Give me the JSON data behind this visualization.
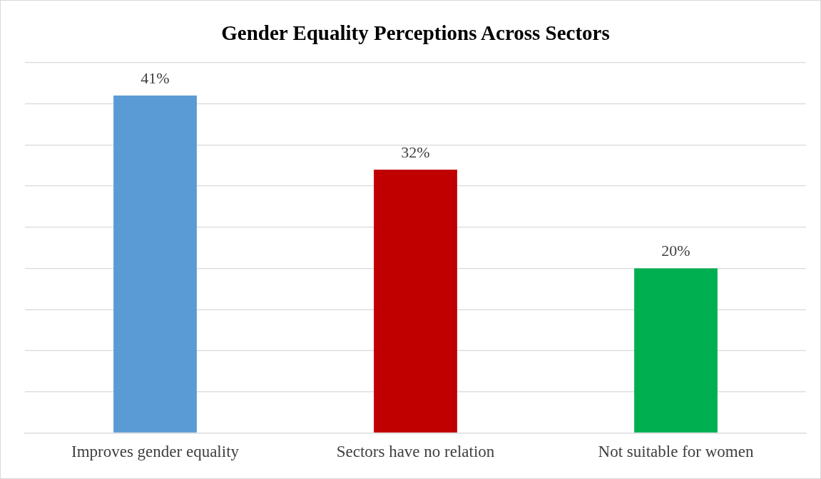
{
  "chart_data": {
    "type": "bar",
    "title": "Gender Equality Perceptions Across Sectors",
    "categories": [
      "Improves gender equality",
      "Sectors have no relation",
      "Not suitable for women"
    ],
    "values": [
      41,
      32,
      20
    ],
    "colors": [
      "#5b9bd5",
      "#c00000",
      "#00b050"
    ],
    "value_labels": [
      "41%",
      "32%",
      "20%"
    ],
    "ylim": [
      0,
      45
    ],
    "yticks": [
      {
        "value": 0,
        "label": null
      },
      {
        "value": 5,
        "label": null
      },
      {
        "value": 10,
        "label": null
      },
      {
        "value": 15,
        "label": null
      },
      {
        "value": 20,
        "label": null
      },
      {
        "value": 25,
        "label": null
      },
      {
        "value": 30,
        "label": null
      },
      {
        "value": 35,
        "label": null
      },
      {
        "value": 40,
        "label": null
      },
      {
        "value": 45,
        "label": null
      }
    ],
    "tick_labels": "x",
    "grid": "y",
    "legend": false
  }
}
